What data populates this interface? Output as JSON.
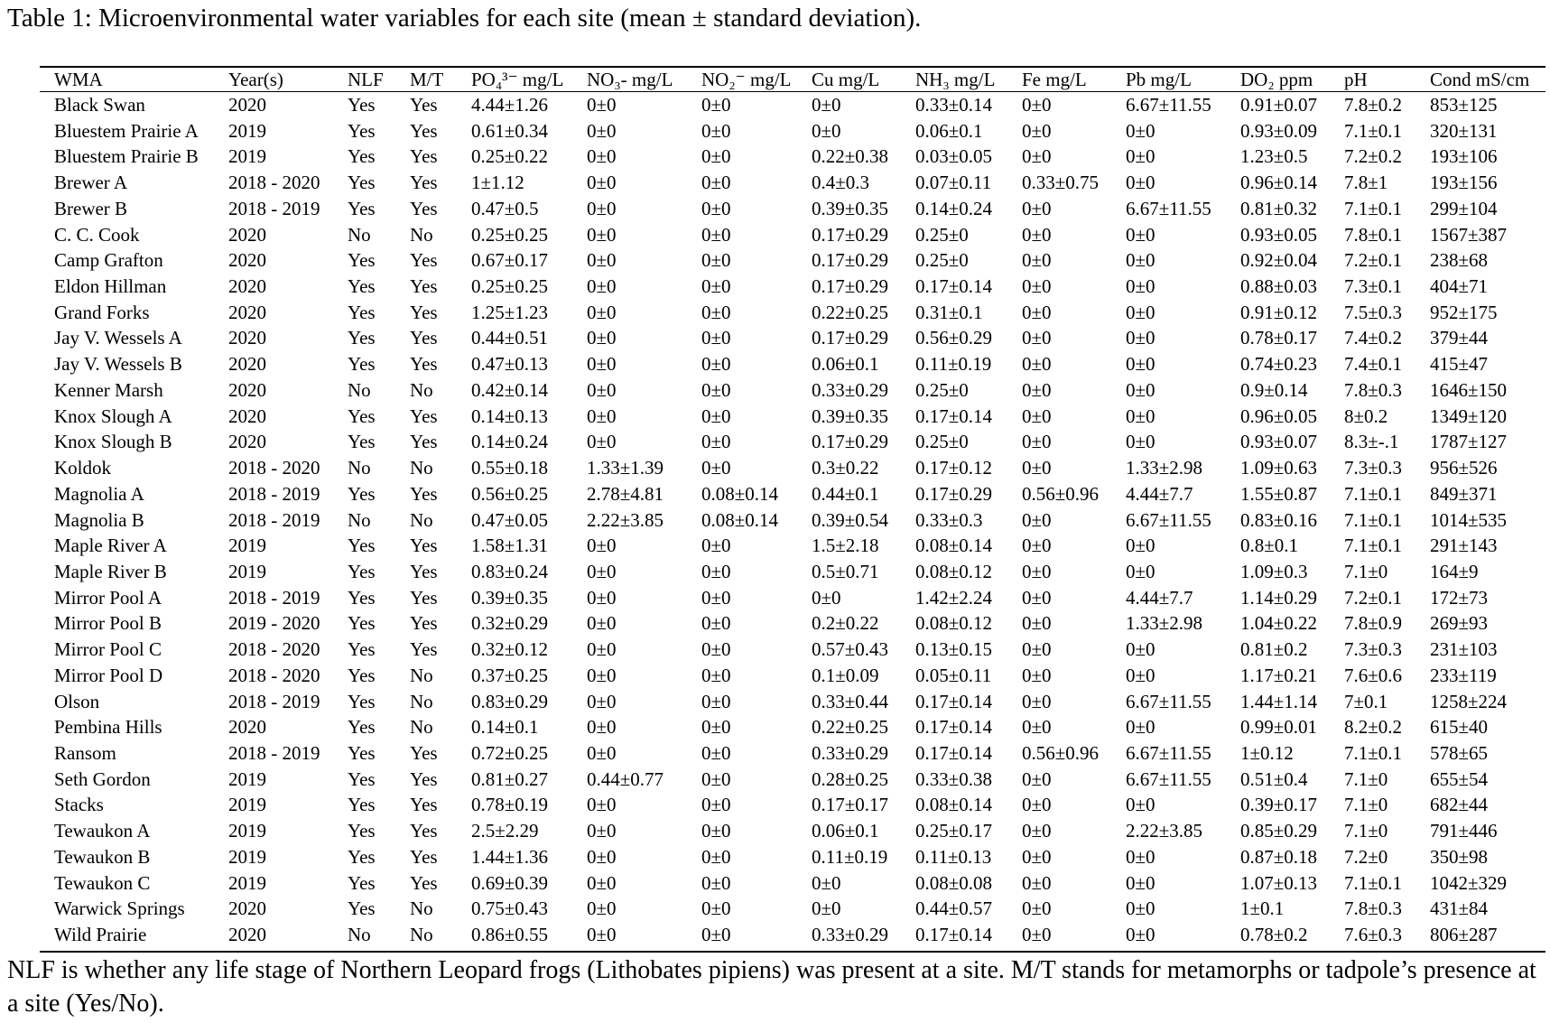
{
  "title": "Table 1: Microenvironmental water variables for each site (mean ± standard deviation).",
  "table": {
    "header": [
      "WMA",
      "Year(s)",
      "NLF",
      "M/T",
      "PO₄³⁻ mg/L",
      "NO₃- mg/L",
      "NO₂⁻ mg/L",
      "Cu mg/L",
      "NH₃ mg/L",
      "Fe mg/L",
      "Pb mg/L",
      "DO₂ ppm",
      "pH",
      "Cond mS/cm"
    ],
    "rows": [
      [
        "Black Swan",
        "2020",
        "Yes",
        "Yes",
        "4.44±1.26",
        "0±0",
        "0±0",
        "0±0",
        "0.33±0.14",
        "0±0",
        "6.67±11.55",
        "0.91±0.07",
        "7.8±0.2",
        "853±125"
      ],
      [
        "Bluestem Prairie A",
        "2019",
        "Yes",
        "Yes",
        "0.61±0.34",
        "0±0",
        "0±0",
        "0±0",
        "0.06±0.1",
        "0±0",
        "0±0",
        "0.93±0.09",
        "7.1±0.1",
        "320±131"
      ],
      [
        "Bluestem Prairie B",
        "2019",
        "Yes",
        "Yes",
        "0.25±0.22",
        "0±0",
        "0±0",
        "0.22±0.38",
        "0.03±0.05",
        "0±0",
        "0±0",
        "1.23±0.5",
        "7.2±0.2",
        "193±106"
      ],
      [
        "Brewer A",
        "2018 - 2020",
        "Yes",
        "Yes",
        "1±1.12",
        "0±0",
        "0±0",
        "0.4±0.3",
        "0.07±0.11",
        "0.33±0.75",
        "0±0",
        "0.96±0.14",
        "7.8±1",
        "193±156"
      ],
      [
        "Brewer B",
        "2018 - 2019",
        "Yes",
        "Yes",
        "0.47±0.5",
        "0±0",
        "0±0",
        "0.39±0.35",
        "0.14±0.24",
        "0±0",
        "6.67±11.55",
        "0.81±0.32",
        "7.1±0.1",
        "299±104"
      ],
      [
        "C. C. Cook",
        "2020",
        "No",
        "No",
        "0.25±0.25",
        "0±0",
        "0±0",
        "0.17±0.29",
        "0.25±0",
        "0±0",
        "0±0",
        "0.93±0.05",
        "7.8±0.1",
        "1567±387"
      ],
      [
        "Camp Grafton",
        "2020",
        "Yes",
        "Yes",
        "0.67±0.17",
        "0±0",
        "0±0",
        "0.17±0.29",
        "0.25±0",
        "0±0",
        "0±0",
        "0.92±0.04",
        "7.2±0.1",
        "238±68"
      ],
      [
        "Eldon Hillman",
        "2020",
        "Yes",
        "Yes",
        "0.25±0.25",
        "0±0",
        "0±0",
        "0.17±0.29",
        "0.17±0.14",
        "0±0",
        "0±0",
        "0.88±0.03",
        "7.3±0.1",
        "404±71"
      ],
      [
        "Grand Forks",
        "2020",
        "Yes",
        "Yes",
        "1.25±1.23",
        "0±0",
        "0±0",
        "0.22±0.25",
        "0.31±0.1",
        "0±0",
        "0±0",
        "0.91±0.12",
        "7.5±0.3",
        "952±175"
      ],
      [
        "Jay V. Wessels A",
        "2020",
        "Yes",
        "Yes",
        "0.44±0.51",
        "0±0",
        "0±0",
        "0.17±0.29",
        "0.56±0.29",
        "0±0",
        "0±0",
        "0.78±0.17",
        "7.4±0.2",
        "379±44"
      ],
      [
        "Jay V. Wessels B",
        "2020",
        "Yes",
        "Yes",
        "0.47±0.13",
        "0±0",
        "0±0",
        "0.06±0.1",
        "0.11±0.19",
        "0±0",
        "0±0",
        "0.74±0.23",
        "7.4±0.1",
        "415±47"
      ],
      [
        "Kenner Marsh",
        "2020",
        "No",
        "No",
        "0.42±0.14",
        "0±0",
        "0±0",
        "0.33±0.29",
        "0.25±0",
        "0±0",
        "0±0",
        "0.9±0.14",
        "7.8±0.3",
        "1646±150"
      ],
      [
        "Knox Slough A",
        "2020",
        "Yes",
        "Yes",
        "0.14±0.13",
        "0±0",
        "0±0",
        "0.39±0.35",
        "0.17±0.14",
        "0±0",
        "0±0",
        "0.96±0.05",
        "8±0.2",
        "1349±120"
      ],
      [
        "Knox Slough B",
        "2020",
        "Yes",
        "Yes",
        "0.14±0.24",
        "0±0",
        "0±0",
        "0.17±0.29",
        "0.25±0",
        "0±0",
        "0±0",
        "0.93±0.07",
        "8.3±-.1",
        "1787±127"
      ],
      [
        "Koldok",
        "2018 - 2020",
        "No",
        "No",
        "0.55±0.18",
        "1.33±1.39",
        "0±0",
        "0.3±0.22",
        "0.17±0.12",
        "0±0",
        "1.33±2.98",
        "1.09±0.63",
        "7.3±0.3",
        "956±526"
      ],
      [
        "Magnolia A",
        "2018 - 2019",
        "Yes",
        "Yes",
        "0.56±0.25",
        "2.78±4.81",
        "0.08±0.14",
        "0.44±0.1",
        "0.17±0.29",
        "0.56±0.96",
        "4.44±7.7",
        "1.55±0.87",
        "7.1±0.1",
        "849±371"
      ],
      [
        "Magnolia B",
        "2018 - 2019",
        "No",
        "No",
        "0.47±0.05",
        "2.22±3.85",
        "0.08±0.14",
        "0.39±0.54",
        "0.33±0.3",
        "0±0",
        "6.67±11.55",
        "0.83±0.16",
        "7.1±0.1",
        "1014±535"
      ],
      [
        "Maple River A",
        "2019",
        "Yes",
        "Yes",
        "1.58±1.31",
        "0±0",
        "0±0",
        "1.5±2.18",
        "0.08±0.14",
        "0±0",
        "0±0",
        "0.8±0.1",
        "7.1±0.1",
        "291±143"
      ],
      [
        "Maple River B",
        "2019",
        "Yes",
        "Yes",
        "0.83±0.24",
        "0±0",
        "0±0",
        "0.5±0.71",
        "0.08±0.12",
        "0±0",
        "0±0",
        "1.09±0.3",
        "7.1±0",
        "164±9"
      ],
      [
        "Mirror Pool A",
        "2018 - 2019",
        "Yes",
        "Yes",
        "0.39±0.35",
        "0±0",
        "0±0",
        "0±0",
        "1.42±2.24",
        "0±0",
        "4.44±7.7",
        "1.14±0.29",
        "7.2±0.1",
        "172±73"
      ],
      [
        "Mirror Pool B",
        "2019 - 2020",
        "Yes",
        "Yes",
        "0.32±0.29",
        "0±0",
        "0±0",
        "0.2±0.22",
        "0.08±0.12",
        "0±0",
        "1.33±2.98",
        "1.04±0.22",
        "7.8±0.9",
        "269±93"
      ],
      [
        "Mirror Pool C",
        "2018 - 2020",
        "Yes",
        "Yes",
        "0.32±0.12",
        "0±0",
        "0±0",
        "0.57±0.43",
        "0.13±0.15",
        "0±0",
        "0±0",
        "0.81±0.2",
        "7.3±0.3",
        "231±103"
      ],
      [
        "Mirror Pool D",
        "2018 - 2020",
        "Yes",
        "No",
        "0.37±0.25",
        "0±0",
        "0±0",
        "0.1±0.09",
        "0.05±0.11",
        "0±0",
        "0±0",
        "1.17±0.21",
        "7.6±0.6",
        "233±119"
      ],
      [
        "Olson",
        "2018 - 2019",
        "Yes",
        "No",
        "0.83±0.29",
        "0±0",
        "0±0",
        "0.33±0.44",
        "0.17±0.14",
        "0±0",
        "6.67±11.55",
        "1.44±1.14",
        "7±0.1",
        "1258±224"
      ],
      [
        "Pembina Hills",
        "2020",
        "Yes",
        "No",
        "0.14±0.1",
        "0±0",
        "0±0",
        "0.22±0.25",
        "0.17±0.14",
        "0±0",
        "0±0",
        "0.99±0.01",
        "8.2±0.2",
        "615±40"
      ],
      [
        "Ransom",
        "2018 - 2019",
        "Yes",
        "Yes",
        "0.72±0.25",
        "0±0",
        "0±0",
        "0.33±0.29",
        "0.17±0.14",
        "0.56±0.96",
        "6.67±11.55",
        "1±0.12",
        "7.1±0.1",
        "578±65"
      ],
      [
        "Seth Gordon",
        "2019",
        "Yes",
        "Yes",
        "0.81±0.27",
        "0.44±0.77",
        "0±0",
        "0.28±0.25",
        "0.33±0.38",
        "0±0",
        "6.67±11.55",
        "0.51±0.4",
        "7.1±0",
        "655±54"
      ],
      [
        "Stacks",
        "2019",
        "Yes",
        "Yes",
        "0.78±0.19",
        "0±0",
        "0±0",
        "0.17±0.17",
        "0.08±0.14",
        "0±0",
        "0±0",
        "0.39±0.17",
        "7.1±0",
        "682±44"
      ],
      [
        "Tewaukon A",
        "2019",
        "Yes",
        "Yes",
        "2.5±2.29",
        "0±0",
        "0±0",
        "0.06±0.1",
        "0.25±0.17",
        "0±0",
        "2.22±3.85",
        "0.85±0.29",
        "7.1±0",
        "791±446"
      ],
      [
        "Tewaukon B",
        "2019",
        "Yes",
        "Yes",
        "1.44±1.36",
        "0±0",
        "0±0",
        "0.11±0.19",
        "0.11±0.13",
        "0±0",
        "0±0",
        "0.87±0.18",
        "7.2±0",
        "350±98"
      ],
      [
        "Tewaukon C",
        "2019",
        "Yes",
        "Yes",
        "0.69±0.39",
        "0±0",
        "0±0",
        "0±0",
        "0.08±0.08",
        "0±0",
        "0±0",
        "1.07±0.13",
        "7.1±0.1",
        "1042±329"
      ],
      [
        "Warwick Springs",
        "2020",
        "Yes",
        "No",
        "0.75±0.43",
        "0±0",
        "0±0",
        "0±0",
        "0.44±0.57",
        "0±0",
        "0±0",
        "1±0.1",
        "7.8±0.3",
        "431±84"
      ],
      [
        "Wild Prairie",
        "2020",
        "No",
        "No",
        "0.86±0.55",
        "0±0",
        "0±0",
        "0.33±0.29",
        "0.17±0.14",
        "0±0",
        "0±0",
        "0.78±0.2",
        "7.6±0.3",
        "806±287"
      ]
    ]
  },
  "footnote": "NLF is whether any life stage of Northern Leopard frogs (Lithobates pipiens) was present at a site. M/T stands for metamorphs or tadpole’s presence at a site (Yes/No)."
}
